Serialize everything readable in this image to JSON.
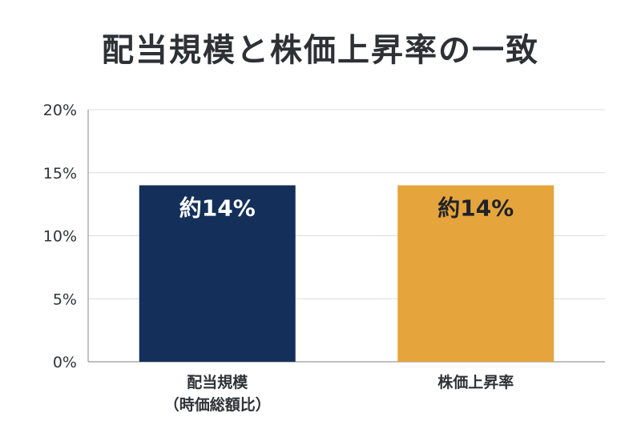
{
  "chart_data": {
    "type": "bar",
    "title": "配当規模と株価上昇率の一致",
    "categories": [
      [
        "配当規模",
        "（時価総額比）"
      ],
      [
        "株価上昇率"
      ]
    ],
    "values": [
      14,
      14
    ],
    "data_labels": [
      "約14%",
      "約14%"
    ],
    "ylim": [
      0,
      20
    ],
    "yticks": [
      0,
      5,
      10,
      15,
      20
    ],
    "ytick_labels": [
      "0%",
      "5%",
      "10%",
      "15%",
      "20%"
    ],
    "grid": true,
    "colors": [
      "#14305a",
      "#e5a43c"
    ],
    "label_colors": [
      "#ffffff",
      "#1f2328"
    ]
  }
}
